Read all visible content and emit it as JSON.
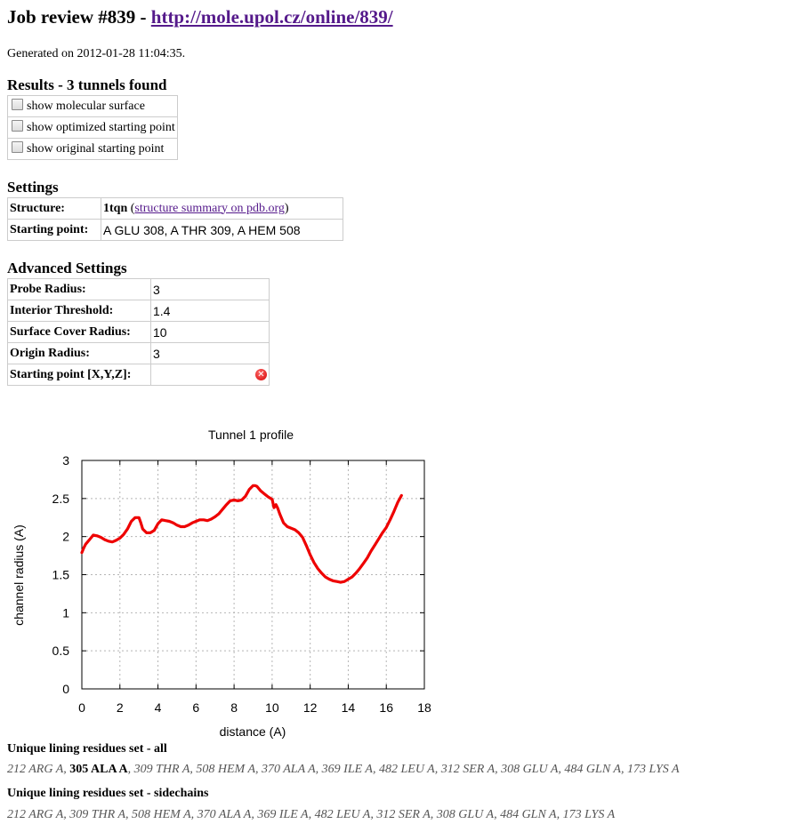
{
  "header": {
    "title_prefix": "Job review #839 - ",
    "title_link": "http://mole.upol.cz/online/839/"
  },
  "generated": "Generated on 2012-01-28 11:04:35.",
  "results": {
    "heading": "Results - 3 tunnels found",
    "options": [
      {
        "label": "show molecular surface",
        "checked": false
      },
      {
        "label": "show optimized starting point",
        "checked": false
      },
      {
        "label": "show original starting point",
        "checked": false
      }
    ]
  },
  "settings": {
    "heading": "Settings",
    "structure_label": "Structure:",
    "structure_id": "1tqn",
    "structure_link_open": " (",
    "structure_link": "structure summary on pdb.org",
    "structure_link_close": ")",
    "starting_point_label": "Starting point:",
    "starting_point_value": "A GLU 308, A THR 309, A HEM 508"
  },
  "advanced": {
    "heading": "Advanced Settings",
    "rows": [
      {
        "label": "Probe Radius:",
        "value": "3"
      },
      {
        "label": "Interior Threshold:",
        "value": "1.4"
      },
      {
        "label": "Surface Cover Radius:",
        "value": "10"
      },
      {
        "label": "Origin Radius:",
        "value": "3"
      },
      {
        "label": "Starting point [X,Y,Z]:",
        "value": ""
      }
    ]
  },
  "chart_data": {
    "type": "line",
    "title": "Tunnel 1 profile",
    "xlabel": "distance (A)",
    "ylabel": "channel radius (A)",
    "xlim": [
      0,
      18
    ],
    "ylim": [
      0,
      3
    ],
    "xticks": [
      "0",
      "2",
      "4",
      "6",
      "8",
      "10",
      "12",
      "14",
      "16",
      "18"
    ],
    "yticks": [
      "0",
      "0.5",
      "1",
      "1.5",
      "2",
      "2.5",
      "3"
    ],
    "grid": true,
    "line_color": "#ee0000",
    "series": [
      {
        "x": [
          0,
          0.1,
          0.2,
          0.4,
          0.6,
          0.8,
          1.0,
          1.2,
          1.4,
          1.6,
          1.8,
          2.0,
          2.2,
          2.4,
          2.6,
          2.8,
          3.0,
          3.1,
          3.2,
          3.4,
          3.6,
          3.8,
          4.0,
          4.2,
          4.4,
          4.6,
          4.8,
          5.0,
          5.2,
          5.4,
          5.6,
          5.8,
          6.0,
          6.2,
          6.4,
          6.6,
          6.8,
          7.0,
          7.2,
          7.4,
          7.6,
          7.8,
          8.0,
          8.2,
          8.4,
          8.6,
          8.8,
          9.0,
          9.1,
          9.2,
          9.4,
          9.6,
          9.8,
          10.0,
          10.1,
          10.2,
          10.3,
          10.4,
          10.6,
          10.8,
          11.0,
          11.2,
          11.4,
          11.6,
          11.8,
          12.0,
          12.2,
          12.4,
          12.6,
          12.8,
          13.0,
          13.2,
          13.4,
          13.6,
          13.8,
          14.0,
          14.2,
          14.4,
          14.6,
          14.8,
          15.0,
          15.2,
          15.4,
          15.6,
          15.8,
          16.0,
          16.2,
          16.4,
          16.6,
          16.8
        ],
        "y": [
          1.79,
          1.85,
          1.9,
          1.96,
          2.02,
          2.01,
          1.99,
          1.96,
          1.94,
          1.93,
          1.95,
          1.98,
          2.03,
          2.1,
          2.2,
          2.25,
          2.25,
          2.18,
          2.1,
          2.05,
          2.05,
          2.08,
          2.17,
          2.22,
          2.21,
          2.2,
          2.18,
          2.15,
          2.13,
          2.13,
          2.15,
          2.18,
          2.2,
          2.22,
          2.22,
          2.21,
          2.23,
          2.26,
          2.3,
          2.36,
          2.42,
          2.47,
          2.48,
          2.47,
          2.48,
          2.53,
          2.62,
          2.67,
          2.67,
          2.66,
          2.6,
          2.56,
          2.52,
          2.49,
          2.38,
          2.42,
          2.37,
          2.3,
          2.18,
          2.13,
          2.11,
          2.09,
          2.05,
          1.99,
          1.88,
          1.76,
          1.66,
          1.58,
          1.52,
          1.47,
          1.44,
          1.42,
          1.41,
          1.4,
          1.41,
          1.44,
          1.47,
          1.52,
          1.58,
          1.65,
          1.72,
          1.81,
          1.89,
          1.97,
          2.05,
          2.12,
          2.22,
          2.33,
          2.45,
          2.54
        ]
      }
    ]
  },
  "residues_all": {
    "heading": "Unique lining residues set - all",
    "before": "212 ARG A, ",
    "highlight": "305 ALA A",
    "after": ", 309 THR A, 508 HEM A, 370 ALA A, 369 ILE A, 482 LEU A, 312 SER A, 308 GLU A, 484 GLN A, 173 LYS A"
  },
  "residues_side": {
    "heading": "Unique lining residues set - sidechains",
    "text": "212 ARG A, 309 THR A, 508 HEM A, 370 ALA A, 369 ILE A, 482 LEU A, 312 SER A, 308 GLU A, 484 GLN A, 173 LYS A"
  }
}
